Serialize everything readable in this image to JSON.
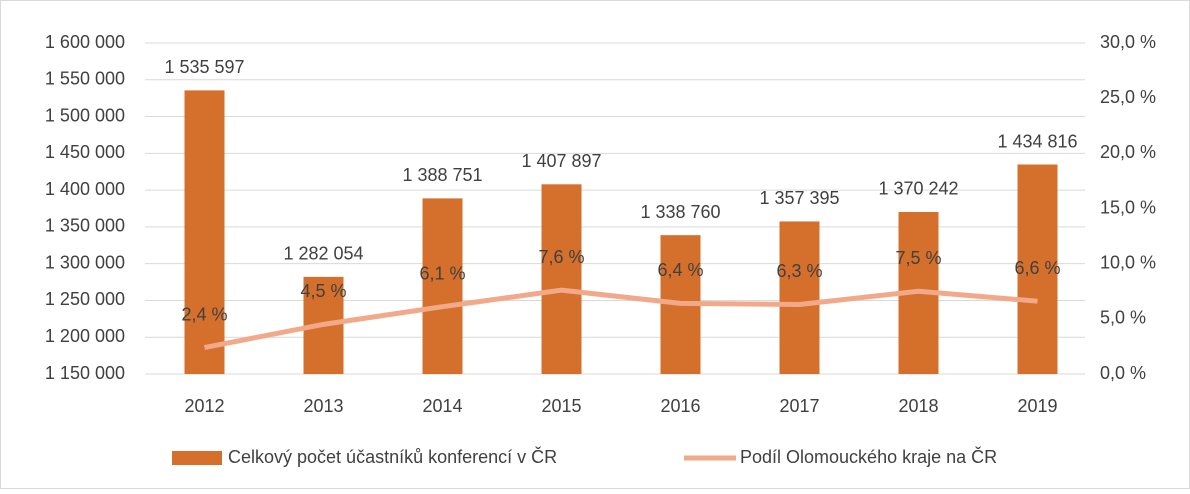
{
  "chart_data": {
    "type": "bar",
    "categories": [
      "2012",
      "2013",
      "2014",
      "2015",
      "2016",
      "2017",
      "2018",
      "2019"
    ],
    "series": [
      {
        "name": "Celkový počet účastníků konferencí v ČR",
        "type": "bar",
        "color": "#d4702b",
        "values": [
          1535597,
          1282054,
          1388751,
          1407897,
          1338760,
          1357395,
          1370242,
          1434816
        ],
        "value_labels": [
          "1 535 597",
          "1 282 054",
          "1 388 751",
          "1 407 897",
          "1 338 760",
          "1 357 395",
          "1 370 242",
          "1 434 816"
        ]
      },
      {
        "name": "Podíl Olomouckého kraje na ČR",
        "type": "line",
        "axis": "y2",
        "color": "#f2a98a",
        "values": [
          2.4,
          4.5,
          6.1,
          7.6,
          6.4,
          6.3,
          7.5,
          6.6
        ],
        "value_labels": [
          "2,4 %",
          "4,5 %",
          "6,1 %",
          "7,6 %",
          "6,4 %",
          "6,3 %",
          "7,5 %",
          "6,6 %"
        ]
      }
    ],
    "ylim": [
      1150000,
      1600000
    ],
    "yticks": [
      {
        "value": 1150000,
        "label": "1 150 000"
      },
      {
        "value": 1200000,
        "label": "1 200 000"
      },
      {
        "value": 1250000,
        "label": "1 250 000"
      },
      {
        "value": 1300000,
        "label": "1 300 000"
      },
      {
        "value": 1350000,
        "label": "1 350 000"
      },
      {
        "value": 1400000,
        "label": "1 400 000"
      },
      {
        "value": 1450000,
        "label": "1 450 000"
      },
      {
        "value": 1500000,
        "label": "1 500 000"
      },
      {
        "value": 1550000,
        "label": "1 550 000"
      },
      {
        "value": 1600000,
        "label": "1 600 000"
      }
    ],
    "y2lim": [
      0,
      30
    ],
    "y2ticks": [
      {
        "value": 0,
        "label": "0,0 %"
      },
      {
        "value": 5,
        "label": "5,0 %"
      },
      {
        "value": 10,
        "label": "10,0 %"
      },
      {
        "value": 15,
        "label": "15,0 %"
      },
      {
        "value": 20,
        "label": "20,0 %"
      },
      {
        "value": 25,
        "label": "25,0 %"
      },
      {
        "value": 30,
        "label": "30,0 %"
      }
    ],
    "grid": true,
    "legend": "bottom"
  }
}
